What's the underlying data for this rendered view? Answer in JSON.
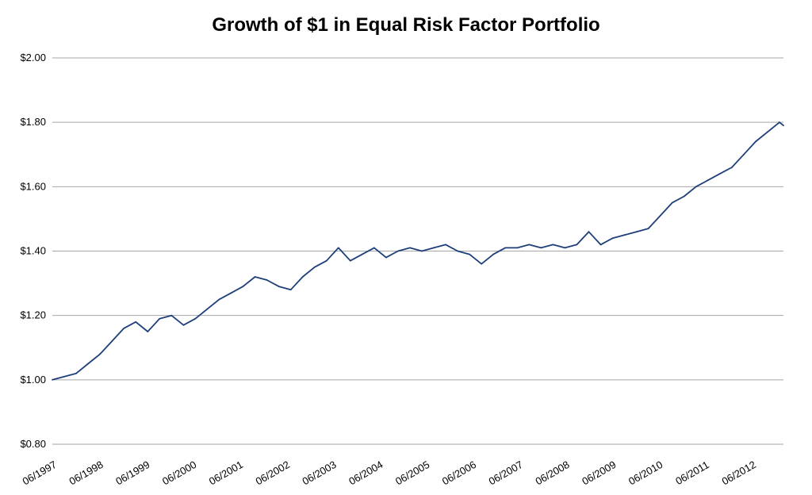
{
  "chart_data": {
    "type": "line",
    "title": "Growth of $1 in Equal Risk Factor Portfolio",
    "xlabel": "",
    "ylabel": "",
    "ylim": [
      0.8,
      2.0
    ],
    "yticks": [
      0.8,
      1.0,
      1.2,
      1.4,
      1.6,
      1.8,
      2.0
    ],
    "ytick_labels": [
      "$0.80",
      "$1.00",
      "$1.20",
      "$1.40",
      "$1.60",
      "$1.80",
      "$2.00"
    ],
    "xlim": [
      "1997-06",
      "2012-10"
    ],
    "xtick_labels": [
      "06/1997",
      "06/1998",
      "06/1999",
      "06/2000",
      "06/2001",
      "06/2002",
      "06/2003",
      "06/2004",
      "06/2005",
      "06/2006",
      "06/2007",
      "06/2008",
      "06/2009",
      "06/2010",
      "06/2011",
      "06/2012"
    ],
    "grid": "horizontal",
    "line_color": "#1f3f7a",
    "grid_color": "#a6a6a6",
    "x": [
      "1997-06",
      "1997-09",
      "1997-12",
      "1998-03",
      "1998-06",
      "1998-09",
      "1998-12",
      "1999-03",
      "1999-06",
      "1999-09",
      "1999-12",
      "2000-03",
      "2000-06",
      "2000-09",
      "2000-12",
      "2001-03",
      "2001-06",
      "2001-09",
      "2001-12",
      "2002-03",
      "2002-06",
      "2002-09",
      "2002-12",
      "2003-03",
      "2003-06",
      "2003-09",
      "2003-12",
      "2004-03",
      "2004-06",
      "2004-09",
      "2004-12",
      "2005-03",
      "2005-06",
      "2005-09",
      "2005-12",
      "2006-03",
      "2006-06",
      "2006-09",
      "2006-12",
      "2007-03",
      "2007-06",
      "2007-09",
      "2007-12",
      "2008-03",
      "2008-06",
      "2008-09",
      "2008-12",
      "2009-03",
      "2009-06",
      "2009-09",
      "2009-12",
      "2010-03",
      "2010-06",
      "2010-09",
      "2010-12",
      "2011-03",
      "2011-06",
      "2011-09",
      "2011-12",
      "2012-03",
      "2012-06",
      "2012-09",
      "2012-10"
    ],
    "values": [
      1.0,
      1.01,
      1.02,
      1.05,
      1.08,
      1.12,
      1.16,
      1.18,
      1.15,
      1.19,
      1.2,
      1.17,
      1.19,
      1.22,
      1.25,
      1.27,
      1.29,
      1.32,
      1.31,
      1.29,
      1.28,
      1.32,
      1.35,
      1.37,
      1.41,
      1.37,
      1.39,
      1.41,
      1.38,
      1.4,
      1.41,
      1.4,
      1.41,
      1.42,
      1.4,
      1.39,
      1.36,
      1.39,
      1.41,
      1.41,
      1.42,
      1.41,
      1.42,
      1.41,
      1.42,
      1.46,
      1.42,
      1.44,
      1.45,
      1.46,
      1.47,
      1.51,
      1.55,
      1.57,
      1.6,
      1.62,
      1.64,
      1.66,
      1.7,
      1.74,
      1.77,
      1.8,
      1.79
    ]
  }
}
